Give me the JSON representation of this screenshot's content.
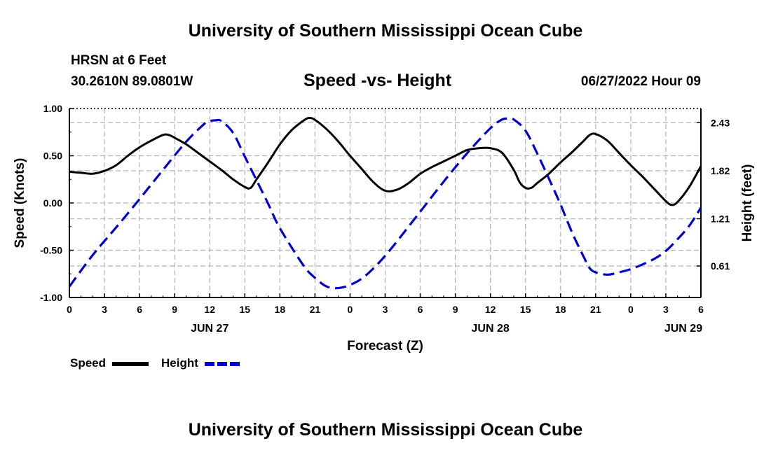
{
  "page": {
    "title_top": "University of Southern Mississippi Ocean Cube",
    "title_bottom": "University of Southern Mississippi Ocean Cube",
    "station": "HRSN at 6 Feet",
    "coords": "30.2610N  89.0801W",
    "datetime": "06/27/2022 Hour 09"
  },
  "colors": {
    "speed": "#000000",
    "height": "#0000cc",
    "grid": "#b4b4b4"
  },
  "chart_data": {
    "type": "line",
    "title": "Speed -vs- Height",
    "xlabel": "Forecast (Z)",
    "ylabel": "Speed (Knots)",
    "y2label": "Height (feet)",
    "xlim": [
      0,
      54
    ],
    "ylim": [
      -1.0,
      1.0
    ],
    "y2lim": [
      0.21,
      2.61
    ],
    "x_ticks": [
      0,
      3,
      6,
      9,
      12,
      15,
      18,
      21,
      24,
      27,
      30,
      33,
      36,
      39,
      42,
      45,
      48,
      51,
      54
    ],
    "x_tick_labels": [
      "0",
      "3",
      "6",
      "9",
      "12",
      "15",
      "18",
      "21",
      "0",
      "3",
      "6",
      "9",
      "12",
      "15",
      "18",
      "21",
      "0",
      "3",
      "6"
    ],
    "date_labels": [
      {
        "x": 12,
        "label": "JUN 27"
      },
      {
        "x": 36,
        "label": "JUN 28"
      },
      {
        "x": 52.5,
        "label": "JUN 29"
      }
    ],
    "y_ticks": [
      -1.0,
      -0.5,
      0.0,
      0.5,
      1.0
    ],
    "y_tick_labels": [
      "-1.00",
      "-0.50",
      "0.00",
      "0.50",
      "1.00"
    ],
    "y2_ticks": [
      0.61,
      1.21,
      1.82,
      2.43
    ],
    "y2_tick_labels": [
      "0.61",
      "1.21",
      "1.82",
      "2.43"
    ],
    "legend": [
      {
        "name": "Speed",
        "style": "solid"
      },
      {
        "name": "Height",
        "style": "dashed"
      }
    ],
    "series": [
      {
        "name": "Speed",
        "axis": "left",
        "points": [
          [
            0,
            0.33
          ],
          [
            1,
            0.32
          ],
          [
            2,
            0.31
          ],
          [
            3,
            0.34
          ],
          [
            4,
            0.4
          ],
          [
            5,
            0.5
          ],
          [
            6,
            0.59
          ],
          [
            7,
            0.66
          ],
          [
            8,
            0.72
          ],
          [
            8.5,
            0.72
          ],
          [
            9,
            0.69
          ],
          [
            10,
            0.62
          ],
          [
            11,
            0.53
          ],
          [
            12,
            0.44
          ],
          [
            13,
            0.35
          ],
          [
            14,
            0.25
          ],
          [
            15,
            0.17
          ],
          [
            15.5,
            0.16
          ],
          [
            16,
            0.25
          ],
          [
            17,
            0.43
          ],
          [
            18,
            0.62
          ],
          [
            19,
            0.77
          ],
          [
            20,
            0.87
          ],
          [
            20.5,
            0.9
          ],
          [
            21,
            0.88
          ],
          [
            22,
            0.78
          ],
          [
            23,
            0.65
          ],
          [
            24,
            0.5
          ],
          [
            25,
            0.36
          ],
          [
            26,
            0.22
          ],
          [
            27,
            0.13
          ],
          [
            28,
            0.14
          ],
          [
            29,
            0.21
          ],
          [
            30,
            0.31
          ],
          [
            31,
            0.38
          ],
          [
            32,
            0.44
          ],
          [
            33,
            0.5
          ],
          [
            34,
            0.56
          ],
          [
            35,
            0.58
          ],
          [
            36,
            0.58
          ],
          [
            37,
            0.53
          ],
          [
            38,
            0.35
          ],
          [
            38.5,
            0.22
          ],
          [
            39,
            0.16
          ],
          [
            39.5,
            0.16
          ],
          [
            40,
            0.21
          ],
          [
            41,
            0.31
          ],
          [
            42,
            0.43
          ],
          [
            43,
            0.54
          ],
          [
            44,
            0.66
          ],
          [
            44.5,
            0.72
          ],
          [
            45,
            0.73
          ],
          [
            46,
            0.66
          ],
          [
            47,
            0.53
          ],
          [
            48,
            0.4
          ],
          [
            49,
            0.28
          ],
          [
            50,
            0.15
          ],
          [
            51,
            0.02
          ],
          [
            51.5,
            -0.02
          ],
          [
            52,
            0.01
          ],
          [
            53,
            0.17
          ],
          [
            54,
            0.39
          ]
        ]
      },
      {
        "name": "Height",
        "axis": "right",
        "points": [
          [
            0,
            0.35
          ],
          [
            2,
            0.75
          ],
          [
            4,
            1.1
          ],
          [
            6,
            1.46
          ],
          [
            8,
            1.83
          ],
          [
            10,
            2.19
          ],
          [
            11.5,
            2.41
          ],
          [
            12,
            2.45
          ],
          [
            12.5,
            2.46
          ],
          [
            13,
            2.45
          ],
          [
            14,
            2.3
          ],
          [
            15,
            2.0
          ],
          [
            16,
            1.7
          ],
          [
            17,
            1.4
          ],
          [
            18,
            1.09
          ],
          [
            20,
            0.62
          ],
          [
            21,
            0.46
          ],
          [
            22,
            0.35
          ],
          [
            23,
            0.33
          ],
          [
            24,
            0.37
          ],
          [
            25,
            0.45
          ],
          [
            26,
            0.58
          ],
          [
            27,
            0.74
          ],
          [
            28,
            0.92
          ],
          [
            30,
            1.3
          ],
          [
            32,
            1.68
          ],
          [
            34,
            2.04
          ],
          [
            36,
            2.36
          ],
          [
            37,
            2.47
          ],
          [
            37.5,
            2.48
          ],
          [
            38,
            2.47
          ],
          [
            39,
            2.33
          ],
          [
            40,
            2.04
          ],
          [
            41,
            1.72
          ],
          [
            42,
            1.39
          ],
          [
            43,
            1.03
          ],
          [
            44,
            0.72
          ],
          [
            44.5,
            0.58
          ],
          [
            45,
            0.53
          ],
          [
            46,
            0.5
          ],
          [
            47,
            0.53
          ],
          [
            48,
            0.57
          ],
          [
            49,
            0.63
          ],
          [
            50,
            0.7
          ],
          [
            51,
            0.8
          ],
          [
            52,
            0.95
          ],
          [
            53,
            1.12
          ],
          [
            54,
            1.35
          ]
        ]
      }
    ]
  }
}
